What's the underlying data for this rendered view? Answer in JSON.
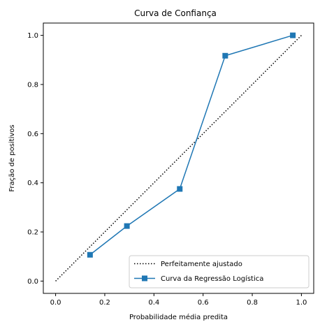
{
  "chart_data": {
    "type": "line",
    "title": "Curva de Confiança",
    "xlabel": "Probabilidade média predita",
    "ylabel": "Fração de positivos",
    "xlim": [
      -0.05,
      1.05
    ],
    "ylim": [
      -0.05,
      1.05
    ],
    "xticks": [
      "0.0",
      "0.2",
      "0.4",
      "0.6",
      "0.8",
      "1.0"
    ],
    "yticks": [
      "0.0",
      "0.2",
      "0.4",
      "0.6",
      "0.8",
      "1.0"
    ],
    "grid": false,
    "legend_position": "lower-right",
    "series": [
      {
        "name": "Perfeitamente ajustado",
        "style": "dotted",
        "color": "#000000",
        "x": [
          0.0,
          1.0
        ],
        "y": [
          0.0,
          1.0
        ]
      },
      {
        "name": "Curva da Regressão Logística",
        "style": "solid",
        "marker": "square",
        "color": "#1f77b4",
        "x": [
          0.14,
          0.29,
          0.505,
          0.69,
          0.965
        ],
        "y": [
          0.107,
          0.224,
          0.375,
          0.917,
          1.0
        ]
      }
    ]
  }
}
